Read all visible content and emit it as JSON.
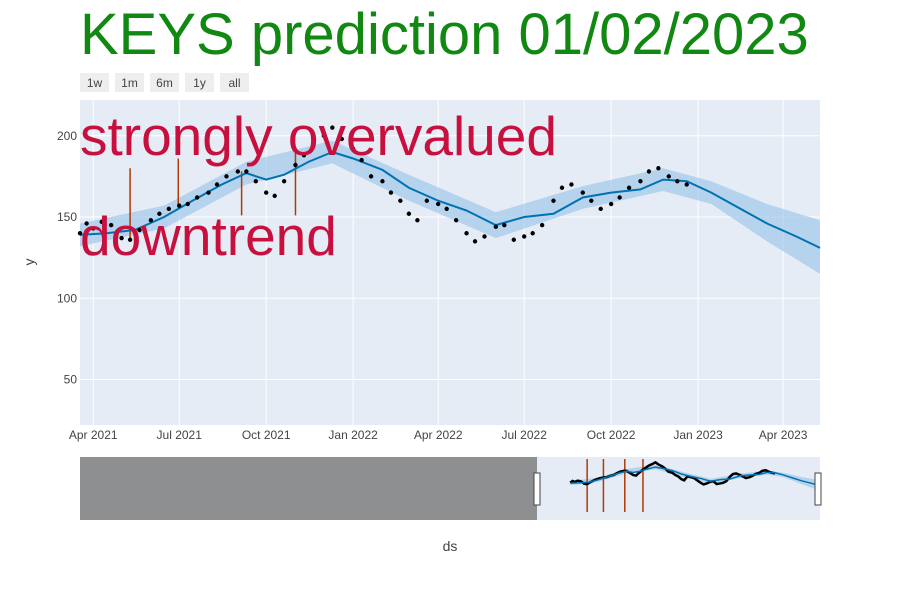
{
  "title": "KEYS prediction 01/02/2023",
  "colors": {
    "title": "#118811",
    "annotation": "#c8103f",
    "plot_bg": "#e5ecf6",
    "trend": "#0072b2",
    "band": "#9cc6e8",
    "observed": "#000000",
    "changepoint": "#b03a00"
  },
  "range_selector": [
    {
      "label": "1w"
    },
    {
      "label": "1m"
    },
    {
      "label": "6m"
    },
    {
      "label": "1y"
    },
    {
      "label": "all"
    }
  ],
  "annotations": [
    "strongly overvalued",
    "downtrend"
  ],
  "chart_data": {
    "type": "line",
    "xlabel": "ds",
    "ylabel": "y",
    "x_range": [
      "2021-03-18",
      "2023-05-10"
    ],
    "y_range": [
      22,
      222
    ],
    "x_ticks": [
      {
        "date": "2021-04-01",
        "label": "Apr 2021"
      },
      {
        "date": "2021-07-01",
        "label": "Jul 2021"
      },
      {
        "date": "2021-10-01",
        "label": "Oct 2021"
      },
      {
        "date": "2022-01-01",
        "label": "Jan 2022"
      },
      {
        "date": "2022-04-01",
        "label": "Apr 2022"
      },
      {
        "date": "2022-07-01",
        "label": "Jul 2022"
      },
      {
        "date": "2022-10-01",
        "label": "Oct 2022"
      },
      {
        "date": "2023-01-01",
        "label": "Jan 2023"
      },
      {
        "date": "2023-04-01",
        "label": "Apr 2023"
      }
    ],
    "y_ticks": [
      50,
      100,
      150,
      200
    ],
    "grid": true,
    "series": [
      {
        "kind": "observed-points",
        "points": [
          [
            "2021-03-18",
            140
          ],
          [
            "2021-03-25",
            146
          ],
          [
            "2021-04-01",
            143
          ],
          [
            "2021-04-10",
            147
          ],
          [
            "2021-04-20",
            145
          ],
          [
            "2021-05-01",
            137
          ],
          [
            "2021-05-10",
            136
          ],
          [
            "2021-05-20",
            142
          ],
          [
            "2021-06-01",
            148
          ],
          [
            "2021-06-10",
            152
          ],
          [
            "2021-06-20",
            155
          ],
          [
            "2021-07-01",
            157
          ],
          [
            "2021-07-10",
            158
          ],
          [
            "2021-07-20",
            162
          ],
          [
            "2021-08-01",
            165
          ],
          [
            "2021-08-10",
            170
          ],
          [
            "2021-08-20",
            175
          ],
          [
            "2021-09-01",
            178
          ],
          [
            "2021-09-10",
            178
          ],
          [
            "2021-09-20",
            172
          ],
          [
            "2021-10-01",
            165
          ],
          [
            "2021-10-10",
            163
          ],
          [
            "2021-10-20",
            172
          ],
          [
            "2021-11-01",
            182
          ],
          [
            "2021-11-10",
            188
          ],
          [
            "2021-11-20",
            195
          ],
          [
            "2021-12-01",
            200
          ],
          [
            "2021-12-10",
            205
          ],
          [
            "2021-12-20",
            198
          ],
          [
            "2022-01-01",
            192
          ],
          [
            "2022-01-10",
            185
          ],
          [
            "2022-01-20",
            175
          ],
          [
            "2022-02-01",
            172
          ],
          [
            "2022-02-10",
            165
          ],
          [
            "2022-02-20",
            160
          ],
          [
            "2022-03-01",
            152
          ],
          [
            "2022-03-10",
            148
          ],
          [
            "2022-03-20",
            160
          ],
          [
            "2022-04-01",
            158
          ],
          [
            "2022-04-10",
            155
          ],
          [
            "2022-04-20",
            148
          ],
          [
            "2022-05-01",
            140
          ],
          [
            "2022-05-10",
            135
          ],
          [
            "2022-05-20",
            138
          ],
          [
            "2022-06-01",
            144
          ],
          [
            "2022-06-10",
            145
          ],
          [
            "2022-06-20",
            136
          ],
          [
            "2022-07-01",
            138
          ],
          [
            "2022-07-10",
            140
          ],
          [
            "2022-07-20",
            145
          ],
          [
            "2022-08-01",
            160
          ],
          [
            "2022-08-10",
            168
          ],
          [
            "2022-08-20",
            170
          ],
          [
            "2022-09-01",
            165
          ],
          [
            "2022-09-10",
            160
          ],
          [
            "2022-09-20",
            155
          ],
          [
            "2022-10-01",
            158
          ],
          [
            "2022-10-10",
            162
          ],
          [
            "2022-10-20",
            168
          ],
          [
            "2022-11-01",
            172
          ],
          [
            "2022-11-10",
            178
          ],
          [
            "2022-11-20",
            180
          ],
          [
            "2022-12-01",
            175
          ],
          [
            "2022-12-10",
            172
          ],
          [
            "2022-12-20",
            170
          ]
        ]
      },
      {
        "kind": "forecast-trend",
        "points": [
          [
            "2021-03-18",
            139
          ],
          [
            "2021-04-15",
            140
          ],
          [
            "2021-05-15",
            142
          ],
          [
            "2021-06-15",
            150
          ],
          [
            "2021-07-15",
            160
          ],
          [
            "2021-08-15",
            170
          ],
          [
            "2021-09-10",
            177
          ],
          [
            "2021-10-01",
            173
          ],
          [
            "2021-10-20",
            176
          ],
          [
            "2021-11-15",
            184
          ],
          [
            "2021-12-10",
            190
          ],
          [
            "2022-01-01",
            186
          ],
          [
            "2022-02-01",
            179
          ],
          [
            "2022-03-01",
            168
          ],
          [
            "2022-04-01",
            160
          ],
          [
            "2022-05-01",
            154
          ],
          [
            "2022-06-01",
            145
          ],
          [
            "2022-07-01",
            150
          ],
          [
            "2022-08-01",
            152
          ],
          [
            "2022-09-01",
            162
          ],
          [
            "2022-10-01",
            165
          ],
          [
            "2022-11-01",
            167
          ],
          [
            "2022-11-25",
            173
          ],
          [
            "2022-12-20",
            172
          ],
          [
            "2023-01-15",
            165
          ],
          [
            "2023-02-15",
            155
          ],
          [
            "2023-03-15",
            146
          ],
          [
            "2023-04-15",
            138
          ],
          [
            "2023-05-10",
            131
          ]
        ]
      },
      {
        "kind": "uncertainty-band",
        "upper": [
          [
            "2021-03-18",
            146
          ],
          [
            "2021-06-15",
            157
          ],
          [
            "2021-09-10",
            184
          ],
          [
            "2021-12-10",
            197
          ],
          [
            "2022-03-01",
            176
          ],
          [
            "2022-06-01",
            153
          ],
          [
            "2022-09-01",
            169
          ],
          [
            "2022-11-25",
            180
          ],
          [
            "2023-01-15",
            172
          ],
          [
            "2023-03-15",
            158
          ],
          [
            "2023-05-10",
            148
          ]
        ],
        "lower": [
          [
            "2021-03-18",
            132
          ],
          [
            "2021-06-15",
            143
          ],
          [
            "2021-09-10",
            170
          ],
          [
            "2021-12-10",
            183
          ],
          [
            "2022-03-01",
            160
          ],
          [
            "2022-06-01",
            137
          ],
          [
            "2022-09-01",
            155
          ],
          [
            "2022-11-25",
            166
          ],
          [
            "2023-01-15",
            158
          ],
          [
            "2023-03-15",
            135
          ],
          [
            "2023-05-10",
            115
          ]
        ]
      }
    ],
    "changepoints": [
      {
        "date": "2021-05-10",
        "y_top": 180,
        "y_bottom": 137
      },
      {
        "date": "2021-06-30",
        "y_top": 186,
        "y_bottom": 155
      },
      {
        "date": "2021-09-05",
        "y_top": 178,
        "y_bottom": 151
      },
      {
        "date": "2021-11-01",
        "y_top": 193,
        "y_bottom": 151
      }
    ],
    "rangeslider": {
      "x_range": [
        "2017-01-01",
        "2023-05-10"
      ],
      "selected": [
        "2021-03-18",
        "2023-05-10"
      ]
    }
  }
}
